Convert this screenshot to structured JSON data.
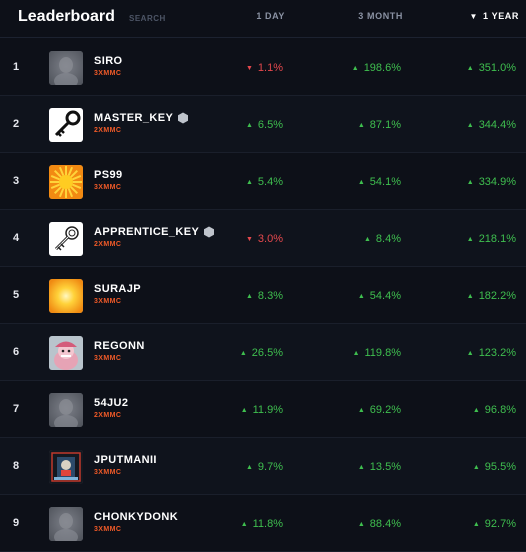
{
  "header": {
    "title": "Leaderboard",
    "search_label": "SEARCH",
    "col_1day": "1 DAY",
    "col_3month": "3 MONTH",
    "col_1year": "1 YEAR",
    "sort_icon": "triangle-down-icon"
  },
  "colors": {
    "up": "#3fbf4f",
    "down": "#e5484d",
    "tag": "#f05a28"
  },
  "rows": [
    {
      "rank": "1",
      "name": "SIRO",
      "tag": "3XMMC",
      "avatar": "blurred-gray",
      "badge": false,
      "day": "1.1%",
      "day_dir": "down",
      "month": "198.6%",
      "month_dir": "up",
      "year": "351.0%",
      "year_dir": "up"
    },
    {
      "rank": "2",
      "name": "MASTER_KEY",
      "tag": "2XMMC",
      "avatar": "key-black",
      "badge": true,
      "day": "6.5%",
      "day_dir": "up",
      "month": "87.1%",
      "month_dir": "up",
      "year": "344.4%",
      "year_dir": "up"
    },
    {
      "rank": "3",
      "name": "PS99",
      "tag": "3XMMC",
      "avatar": "sun-orange",
      "badge": false,
      "day": "5.4%",
      "day_dir": "up",
      "month": "54.1%",
      "month_dir": "up",
      "year": "334.9%",
      "year_dir": "up"
    },
    {
      "rank": "4",
      "name": "APPRENTICE_KEY",
      "tag": "2XMMC",
      "avatar": "key-outline",
      "badge": true,
      "day": "3.0%",
      "day_dir": "down",
      "month": "8.4%",
      "month_dir": "up",
      "year": "218.1%",
      "year_dir": "up"
    },
    {
      "rank": "5",
      "name": "SURAJP",
      "tag": "3XMMC",
      "avatar": "glow-orange",
      "badge": false,
      "day": "8.3%",
      "day_dir": "up",
      "month": "54.4%",
      "month_dir": "up",
      "year": "182.2%",
      "year_dir": "up"
    },
    {
      "rank": "6",
      "name": "REGONN",
      "tag": "3XMMC",
      "avatar": "pink-character",
      "badge": false,
      "day": "26.5%",
      "day_dir": "up",
      "month": "119.8%",
      "month_dir": "up",
      "year": "123.2%",
      "year_dir": "up"
    },
    {
      "rank": "7",
      "name": "54JU2",
      "tag": "2XMMC",
      "avatar": "blurred-gray",
      "badge": false,
      "day": "11.9%",
      "day_dir": "up",
      "month": "69.2%",
      "month_dir": "up",
      "year": "96.8%",
      "year_dir": "up"
    },
    {
      "rank": "8",
      "name": "JPUTMANII",
      "tag": "3XMMC",
      "avatar": "dark-art",
      "badge": false,
      "day": "9.7%",
      "day_dir": "up",
      "month": "13.5%",
      "month_dir": "up",
      "year": "95.5%",
      "year_dir": "up"
    },
    {
      "rank": "9",
      "name": "CHONKYDONK",
      "tag": "3XMMC",
      "avatar": "blurred-gray",
      "badge": false,
      "day": "11.8%",
      "day_dir": "up",
      "month": "88.4%",
      "month_dir": "up",
      "year": "92.7%",
      "year_dir": "up"
    }
  ]
}
